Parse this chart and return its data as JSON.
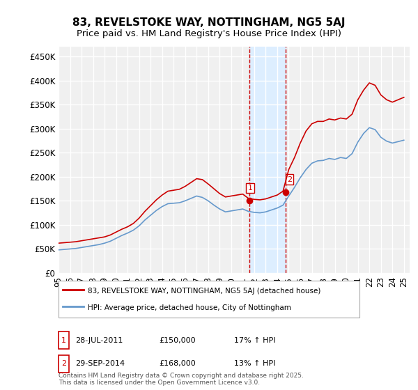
{
  "title": "83, REVELSTOKE WAY, NOTTINGHAM, NG5 5AJ",
  "subtitle": "Price paid vs. HM Land Registry's House Price Index (HPI)",
  "ylabel_ticks": [
    "£0",
    "£50K",
    "£100K",
    "£150K",
    "£200K",
    "£250K",
    "£300K",
    "£350K",
    "£400K",
    "£450K"
  ],
  "ytick_values": [
    0,
    50000,
    100000,
    150000,
    200000,
    250000,
    300000,
    350000,
    400000,
    450000
  ],
  "ylim": [
    0,
    470000
  ],
  "xlim_start": 1995.0,
  "xlim_end": 2025.5,
  "background_color": "#ffffff",
  "plot_bg_color": "#f0f0f0",
  "grid_color": "#ffffff",
  "red_line_color": "#cc0000",
  "blue_line_color": "#6699cc",
  "highlight_bg_color": "#ddeeff",
  "marker1_x": 2011.57,
  "marker2_x": 2014.75,
  "marker1_price": 150000,
  "marker2_price": 168000,
  "dashed_line_color": "#cc0000",
  "legend_entry1": "83, REVELSTOKE WAY, NOTTINGHAM, NG5 5AJ (detached house)",
  "legend_entry2": "HPI: Average price, detached house, City of Nottingham",
  "annotation1_date": "28-JUL-2011",
  "annotation1_price": "£150,000",
  "annotation1_hpi": "17% ↑ HPI",
  "annotation2_date": "29-SEP-2014",
  "annotation2_price": "£168,000",
  "annotation2_hpi": "13% ↑ HPI",
  "footer": "Contains HM Land Registry data © Crown copyright and database right 2025.\nThis data is licensed under the Open Government Licence v3.0.",
  "title_fontsize": 11,
  "subtitle_fontsize": 9.5,
  "tick_fontsize": 8.5,
  "hpi_red_data": {
    "years": [
      1995,
      1995.5,
      1996,
      1996.5,
      1997,
      1997.5,
      1998,
      1998.5,
      1999,
      1999.5,
      2000,
      2000.5,
      2001,
      2001.5,
      2002,
      2002.5,
      2003,
      2003.5,
      2004,
      2004.5,
      2005,
      2005.5,
      2006,
      2006.5,
      2007,
      2007.5,
      2008,
      2008.5,
      2009,
      2009.5,
      2010,
      2010.5,
      2011,
      2011.5,
      2012,
      2012.5,
      2013,
      2013.5,
      2014,
      2014.5,
      2015,
      2015.5,
      2016,
      2016.5,
      2017,
      2017.5,
      2018,
      2018.5,
      2019,
      2019.5,
      2020,
      2020.5,
      2021,
      2021.5,
      2022,
      2022.5,
      2023,
      2023.5,
      2024,
      2024.5,
      2025
    ],
    "values": [
      62000,
      63000,
      64000,
      65000,
      67000,
      69000,
      71000,
      73000,
      75000,
      79000,
      85000,
      91000,
      96000,
      103000,
      114000,
      128000,
      140000,
      152000,
      162000,
      170000,
      172000,
      174000,
      180000,
      188000,
      196000,
      194000,
      185000,
      175000,
      165000,
      158000,
      160000,
      162000,
      164000,
      155000,
      153000,
      152000,
      154000,
      158000,
      162000,
      170000,
      215000,
      240000,
      270000,
      295000,
      310000,
      315000,
      315000,
      320000,
      318000,
      322000,
      320000,
      330000,
      360000,
      380000,
      395000,
      390000,
      370000,
      360000,
      355000,
      360000,
      365000
    ]
  },
  "hpi_blue_data": {
    "years": [
      1995,
      1995.5,
      1996,
      1996.5,
      1997,
      1997.5,
      1998,
      1998.5,
      1999,
      1999.5,
      2000,
      2000.5,
      2001,
      2001.5,
      2002,
      2002.5,
      2003,
      2003.5,
      2004,
      2004.5,
      2005,
      2005.5,
      2006,
      2006.5,
      2007,
      2007.5,
      2008,
      2008.5,
      2009,
      2009.5,
      2010,
      2010.5,
      2011,
      2011.5,
      2012,
      2012.5,
      2013,
      2013.5,
      2014,
      2014.5,
      2015,
      2015.5,
      2016,
      2016.5,
      2017,
      2017.5,
      2018,
      2018.5,
      2019,
      2019.5,
      2020,
      2020.5,
      2021,
      2021.5,
      2022,
      2022.5,
      2023,
      2023.5,
      2024,
      2024.5,
      2025
    ],
    "values": [
      48000,
      49000,
      50000,
      51000,
      53000,
      55000,
      57000,
      59000,
      62000,
      66000,
      72000,
      78000,
      83000,
      89000,
      98000,
      110000,
      120000,
      130000,
      138000,
      144000,
      145000,
      146000,
      150000,
      155000,
      160000,
      157000,
      150000,
      141000,
      133000,
      127000,
      129000,
      131000,
      133000,
      128000,
      126000,
      125000,
      127000,
      131000,
      135000,
      141000,
      160000,
      178000,
      198000,
      215000,
      228000,
      233000,
      234000,
      238000,
      236000,
      240000,
      238000,
      248000,
      272000,
      290000,
      302000,
      298000,
      282000,
      274000,
      270000,
      273000,
      276000
    ]
  }
}
